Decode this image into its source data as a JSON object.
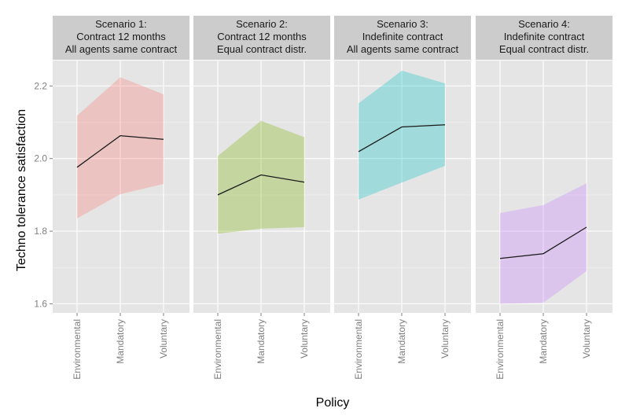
{
  "chart_data": {
    "type": "area",
    "xlabel": "Policy",
    "ylabel": "Techno tolerance satisfaction",
    "categories": [
      "Environmental",
      "Mandatory",
      "Voluntary"
    ],
    "ylim": [
      1.575,
      2.27
    ],
    "yticks": [
      1.6,
      1.8,
      2.0,
      2.2
    ],
    "ytick_labels": [
      "1.6",
      "1.8",
      "2.0",
      "2.2"
    ],
    "grid": true,
    "legend": "none",
    "panels": [
      {
        "strip": [
          "Scenario 1:",
          "Contract 12 months",
          "All agents same contract"
        ],
        "color": "#F8766D",
        "mean": [
          1.976,
          2.063,
          2.053
        ],
        "lower": [
          1.835,
          1.902,
          1.93
        ],
        "upper": [
          2.118,
          2.224,
          2.177
        ]
      },
      {
        "strip": [
          "Scenario 2:",
          "Contract 12 months",
          "Equal contract distr."
        ],
        "color": "#7CAE00",
        "mean": [
          1.9,
          1.955,
          1.935
        ],
        "lower": [
          1.793,
          1.807,
          1.811
        ],
        "upper": [
          2.007,
          2.104,
          2.059
        ]
      },
      {
        "strip": [
          "Scenario 3:",
          "Indefinite contract",
          "All agents same contract"
        ],
        "color": "#00BFC4",
        "mean": [
          2.019,
          2.087,
          2.093
        ],
        "lower": [
          1.887,
          1.934,
          1.98
        ],
        "upper": [
          2.152,
          2.242,
          2.207
        ]
      },
      {
        "strip": [
          "Scenario 4:",
          "Indefinite contract",
          "Equal contract distr."
        ],
        "color": "#C77CFF",
        "mean": [
          1.725,
          1.738,
          1.811
        ],
        "lower": [
          1.6,
          1.603,
          1.69
        ],
        "upper": [
          1.85,
          1.872,
          1.932
        ]
      }
    ]
  }
}
